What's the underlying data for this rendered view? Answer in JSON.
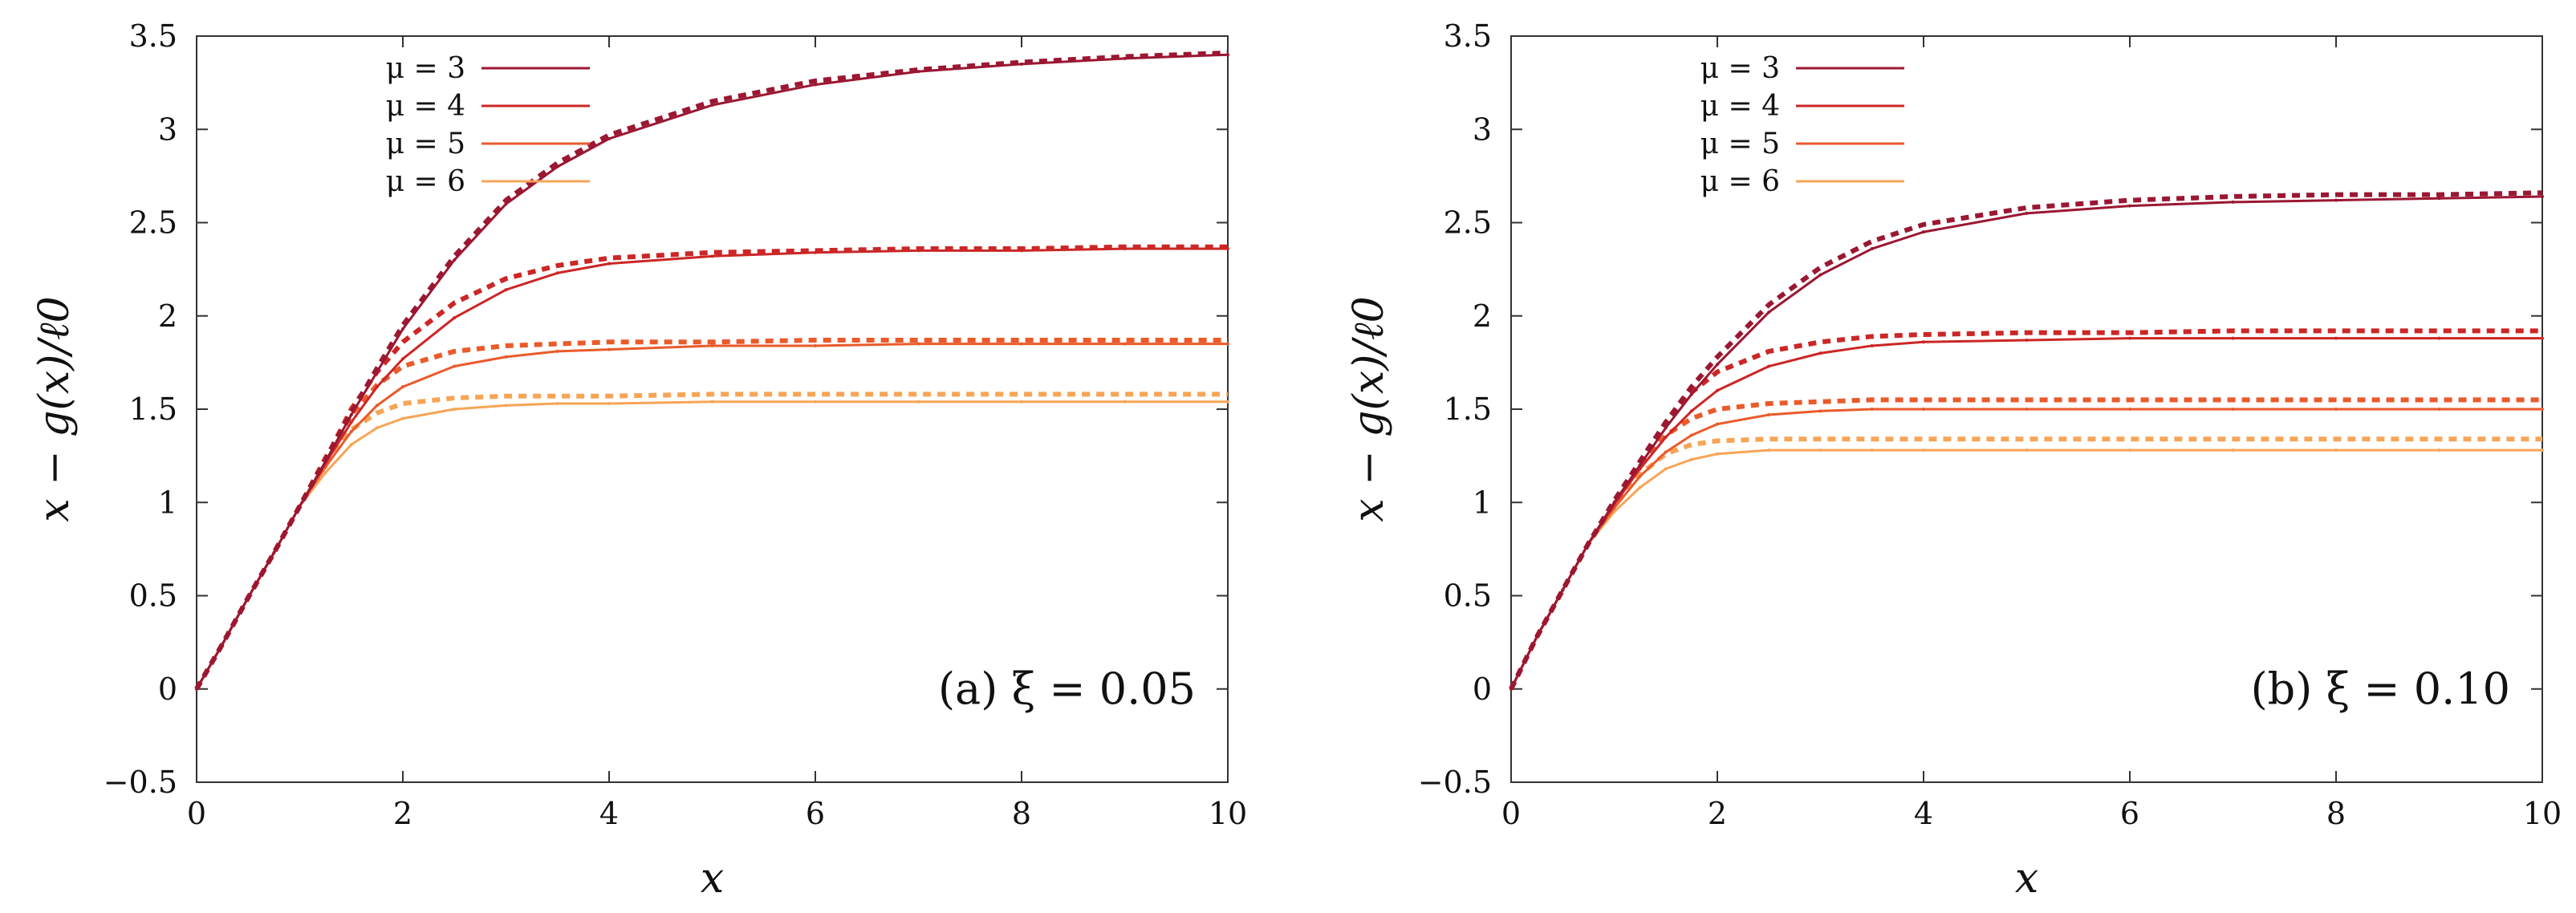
{
  "chart_data": [
    {
      "type": "line",
      "panel_label": "(a) ξ = 0.05",
      "xlabel": "x",
      "ylabel": "x − g(x)/ℓ0",
      "xlim": [
        0,
        10
      ],
      "ylim": [
        -0.5,
        3.5
      ],
      "xticks": [
        0,
        2,
        4,
        6,
        8,
        10
      ],
      "yticks": [
        -0.5,
        0,
        0.5,
        1,
        1.5,
        2,
        2.5,
        3,
        3.5
      ],
      "ytick_labels": [
        "−0.5",
        "0",
        "0.5",
        "1",
        "1.5",
        "2",
        "2.5",
        "3",
        "3.5"
      ],
      "legend_position": "top-left",
      "x": [
        0,
        0.25,
        0.5,
        0.75,
        1,
        1.25,
        1.5,
        1.75,
        2,
        2.5,
        3,
        3.5,
        4,
        5,
        6,
        7,
        8,
        9,
        10
      ],
      "series": [
        {
          "name": "μ = 3",
          "color": "#9b1732",
          "solid": [
            0,
            0.24,
            0.49,
            0.73,
            0.98,
            1.22,
            1.47,
            1.7,
            1.93,
            2.3,
            2.6,
            2.8,
            2.95,
            3.13,
            3.24,
            3.31,
            3.35,
            3.38,
            3.4
          ],
          "dashed": [
            0,
            0.24,
            0.49,
            0.73,
            0.98,
            1.23,
            1.48,
            1.72,
            1.95,
            2.32,
            2.62,
            2.82,
            2.97,
            3.15,
            3.26,
            3.32,
            3.36,
            3.39,
            3.41
          ]
        },
        {
          "name": "μ = 4",
          "color": "#cc2626",
          "solid": [
            0,
            0.24,
            0.49,
            0.73,
            0.98,
            1.21,
            1.43,
            1.62,
            1.77,
            1.99,
            2.14,
            2.23,
            2.28,
            2.32,
            2.34,
            2.35,
            2.35,
            2.36,
            2.36
          ],
          "dashed": [
            0,
            0.24,
            0.49,
            0.73,
            0.98,
            1.23,
            1.5,
            1.7,
            1.86,
            2.07,
            2.2,
            2.27,
            2.31,
            2.34,
            2.35,
            2.36,
            2.36,
            2.37,
            2.37
          ]
        },
        {
          "name": "μ = 5",
          "color": "#ea5a2b",
          "solid": [
            0,
            0.24,
            0.49,
            0.73,
            0.98,
            1.19,
            1.38,
            1.52,
            1.62,
            1.73,
            1.78,
            1.81,
            1.82,
            1.84,
            1.84,
            1.85,
            1.85,
            1.85,
            1.85
          ],
          "dashed": [
            0,
            0.24,
            0.49,
            0.73,
            0.98,
            1.24,
            1.47,
            1.63,
            1.73,
            1.81,
            1.84,
            1.85,
            1.86,
            1.86,
            1.87,
            1.87,
            1.87,
            1.87,
            1.87
          ]
        },
        {
          "name": "μ = 6",
          "color": "#f6a556",
          "solid": [
            0,
            0.24,
            0.49,
            0.73,
            0.98,
            1.16,
            1.31,
            1.4,
            1.45,
            1.5,
            1.52,
            1.53,
            1.53,
            1.54,
            1.54,
            1.54,
            1.54,
            1.54,
            1.54
          ],
          "dashed": [
            0,
            0.24,
            0.49,
            0.73,
            0.98,
            1.22,
            1.39,
            1.48,
            1.53,
            1.56,
            1.57,
            1.57,
            1.57,
            1.58,
            1.58,
            1.58,
            1.58,
            1.58,
            1.58
          ]
        }
      ]
    },
    {
      "type": "line",
      "panel_label": "(b) ξ = 0.10",
      "xlabel": "x",
      "ylabel": "x − g(x)/ℓ0",
      "xlim": [
        0,
        10
      ],
      "ylim": [
        -0.5,
        3.5
      ],
      "xticks": [
        0,
        2,
        4,
        6,
        8,
        10
      ],
      "yticks": [
        -0.5,
        0,
        0.5,
        1,
        1.5,
        2,
        2.5,
        3,
        3.5
      ],
      "ytick_labels": [
        "−0.5",
        "0",
        "0.5",
        "1",
        "1.5",
        "2",
        "2.5",
        "3",
        "3.5"
      ],
      "legend_position": "top-left",
      "x": [
        0,
        0.25,
        0.5,
        0.75,
        1,
        1.25,
        1.5,
        1.75,
        2,
        2.5,
        3,
        3.5,
        4,
        5,
        6,
        7,
        8,
        9,
        10
      ],
      "series": [
        {
          "name": "μ = 3",
          "color": "#9b1732",
          "solid": [
            0,
            0.28,
            0.53,
            0.78,
            1.0,
            1.2,
            1.4,
            1.58,
            1.74,
            2.02,
            2.22,
            2.36,
            2.45,
            2.55,
            2.59,
            2.61,
            2.62,
            2.63,
            2.64
          ],
          "dashed": [
            0,
            0.28,
            0.53,
            0.78,
            1.01,
            1.22,
            1.43,
            1.62,
            1.78,
            2.06,
            2.26,
            2.4,
            2.49,
            2.58,
            2.62,
            2.64,
            2.65,
            2.65,
            2.66
          ]
        },
        {
          "name": "μ = 4",
          "color": "#cc2626",
          "solid": [
            0,
            0.28,
            0.53,
            0.78,
            0.99,
            1.18,
            1.35,
            1.49,
            1.6,
            1.73,
            1.8,
            1.84,
            1.86,
            1.87,
            1.88,
            1.88,
            1.88,
            1.88,
            1.88
          ],
          "dashed": [
            0,
            0.28,
            0.53,
            0.78,
            1.0,
            1.22,
            1.43,
            1.59,
            1.7,
            1.81,
            1.86,
            1.89,
            1.9,
            1.91,
            1.91,
            1.92,
            1.92,
            1.92,
            1.92
          ]
        },
        {
          "name": "μ = 5",
          "color": "#ea5a2b",
          "solid": [
            0,
            0.28,
            0.53,
            0.78,
            0.97,
            1.14,
            1.27,
            1.36,
            1.42,
            1.47,
            1.49,
            1.5,
            1.5,
            1.5,
            1.5,
            1.5,
            1.5,
            1.5,
            1.5
          ],
          "dashed": [
            0,
            0.28,
            0.53,
            0.78,
            0.99,
            1.2,
            1.36,
            1.45,
            1.5,
            1.53,
            1.54,
            1.55,
            1.55,
            1.55,
            1.55,
            1.55,
            1.55,
            1.55,
            1.55
          ]
        },
        {
          "name": "μ = 6",
          "color": "#f6a556",
          "solid": [
            0,
            0.28,
            0.53,
            0.78,
            0.95,
            1.08,
            1.18,
            1.23,
            1.26,
            1.28,
            1.28,
            1.28,
            1.28,
            1.28,
            1.28,
            1.28,
            1.28,
            1.28,
            1.28
          ],
          "dashed": [
            0,
            0.28,
            0.53,
            0.78,
            0.98,
            1.15,
            1.26,
            1.31,
            1.33,
            1.34,
            1.34,
            1.34,
            1.34,
            1.34,
            1.34,
            1.34,
            1.34,
            1.34,
            1.34
          ]
        }
      ]
    }
  ]
}
